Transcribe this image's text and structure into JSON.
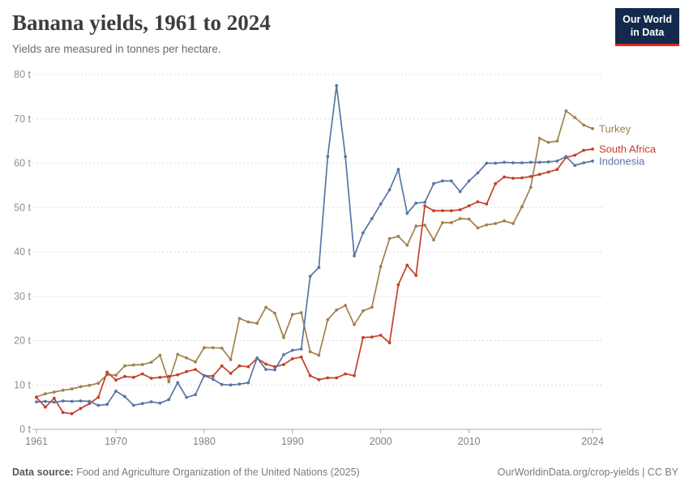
{
  "header": {
    "title": "Banana yields, 1961 to 2024",
    "subtitle": "Yields are measured in tonnes per hectare.",
    "logo": {
      "line1": "Our World",
      "line2": "in Data",
      "bg_color": "#13294d",
      "accent_color": "#e1261d"
    }
  },
  "footer": {
    "source_label": "Data source:",
    "source_text": " Food and Agriculture Organization of the United Nations (2025)",
    "right_text": "OurWorldinData.org/crop-yields | CC BY"
  },
  "chart_data": {
    "type": "line",
    "title": "Banana yields, 1961 to 2024",
    "unit": "t",
    "xlim": [
      1961,
      2024
    ],
    "ylim": [
      0,
      80
    ],
    "yticks": [
      0,
      10,
      20,
      30,
      40,
      50,
      60,
      70,
      80
    ],
    "ytick_format": "{v} t",
    "xticks": [
      1961,
      1970,
      1980,
      1990,
      2000,
      2010,
      2024
    ],
    "grid": "horizontal-dashed",
    "legend": "end-of-line-labels",
    "x": [
      1961,
      1962,
      1963,
      1964,
      1965,
      1966,
      1967,
      1968,
      1969,
      1970,
      1971,
      1972,
      1973,
      1974,
      1975,
      1976,
      1977,
      1978,
      1979,
      1980,
      1981,
      1982,
      1983,
      1984,
      1985,
      1986,
      1987,
      1988,
      1989,
      1990,
      1991,
      1992,
      1993,
      1994,
      1995,
      1996,
      1997,
      1998,
      1999,
      2000,
      2001,
      2002,
      2003,
      2004,
      2005,
      2006,
      2007,
      2008,
      2009,
      2010,
      2011,
      2012,
      2013,
      2014,
      2015,
      2016,
      2017,
      2018,
      2019,
      2020,
      2021,
      2022,
      2023,
      2024
    ],
    "series": [
      {
        "name": "Turkey",
        "color": "#a0814c",
        "values": [
          7.3,
          8.0,
          8.4,
          8.8,
          9.1,
          9.6,
          9.9,
          10.4,
          12.3,
          12.2,
          14.3,
          14.5,
          14.6,
          15.1,
          16.7,
          10.7,
          16.9,
          16.1,
          15.2,
          18.4,
          18.4,
          18.3,
          15.7,
          25.0,
          24.2,
          23.9,
          27.5,
          26.2,
          20.7,
          25.9,
          26.3,
          17.5,
          16.7,
          24.7,
          26.9,
          27.9,
          23.6,
          26.7,
          27.5,
          36.7,
          43.0,
          43.5,
          41.5,
          45.8,
          46.0,
          42.7,
          46.6,
          46.6,
          47.5,
          47.4,
          45.4,
          46.1,
          46.4,
          47.0,
          46.4,
          50.2,
          54.6,
          65.6,
          64.7,
          65.0,
          71.8,
          70.3,
          68.6,
          67.8
        ]
      },
      {
        "name": "South Africa",
        "color": "#c2402a",
        "values": [
          7.2,
          5.0,
          7.0,
          3.8,
          3.5,
          4.7,
          5.8,
          7.2,
          12.9,
          11.1,
          11.9,
          11.7,
          12.5,
          11.5,
          11.7,
          11.9,
          12.3,
          13.0,
          13.5,
          12.1,
          12.0,
          14.3,
          12.6,
          14.3,
          14.1,
          16.0,
          14.7,
          14.1,
          14.6,
          15.9,
          16.3,
          12.1,
          11.2,
          11.6,
          11.6,
          12.5,
          12.1,
          20.7,
          20.8,
          21.2,
          19.5,
          32.6,
          37.0,
          34.7,
          50.4,
          49.3,
          49.3,
          49.3,
          49.5,
          50.4,
          51.3,
          50.8,
          55.4,
          56.9,
          56.6,
          56.7,
          57.0,
          57.5,
          58.0,
          58.6,
          61.3,
          61.8,
          62.9,
          63.2
        ]
      },
      {
        "name": "Indonesia",
        "color": "#5876a3",
        "values": [
          6.2,
          6.3,
          6.1,
          6.4,
          6.3,
          6.4,
          6.3,
          5.4,
          5.6,
          8.6,
          7.4,
          5.4,
          5.8,
          6.2,
          5.9,
          6.7,
          10.5,
          7.2,
          7.8,
          12.1,
          11.3,
          10.1,
          10.0,
          10.2,
          10.5,
          16.1,
          13.5,
          13.4,
          16.8,
          17.8,
          18.1,
          34.5,
          36.5,
          61.5,
          77.5,
          61.5,
          39.1,
          44.3,
          47.5,
          50.8,
          54.0,
          58.6,
          48.7,
          51.0,
          51.2,
          55.4,
          56.0,
          56.0,
          53.6,
          56.0,
          57.8,
          60.0,
          60.0,
          60.2,
          60.1,
          60.1,
          60.2,
          60.2,
          60.3,
          60.5,
          61.5,
          59.5,
          60.1,
          60.5
        ]
      }
    ]
  }
}
